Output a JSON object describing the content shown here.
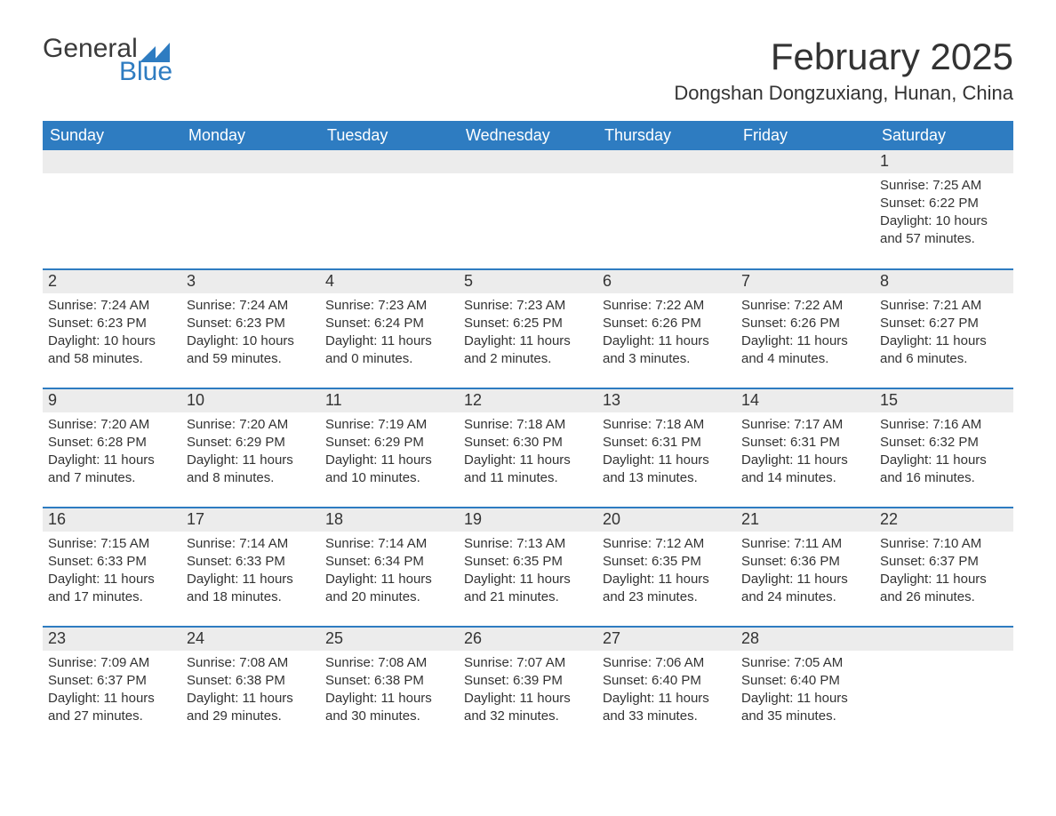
{
  "brand": {
    "word1": "General",
    "word2": "Blue"
  },
  "title": "February 2025",
  "location": "Dongshan Dongzuxiang, Hunan, China",
  "colors": {
    "accent": "#2e7cc1",
    "header_text": "#ffffff",
    "daybar_bg": "#ececec",
    "text": "#333333",
    "background": "#ffffff"
  },
  "typography": {
    "title_fontsize": 42,
    "location_fontsize": 22,
    "header_fontsize": 18,
    "daynum_fontsize": 18,
    "body_fontsize": 15
  },
  "calendar": {
    "columns": [
      "Sunday",
      "Monday",
      "Tuesday",
      "Wednesday",
      "Thursday",
      "Friday",
      "Saturday"
    ],
    "weeks": [
      [
        null,
        null,
        null,
        null,
        null,
        null,
        {
          "day": "1",
          "sunrise": "Sunrise: 7:25 AM",
          "sunset": "Sunset: 6:22 PM",
          "daylight1": "Daylight: 10 hours",
          "daylight2": "and 57 minutes."
        }
      ],
      [
        {
          "day": "2",
          "sunrise": "Sunrise: 7:24 AM",
          "sunset": "Sunset: 6:23 PM",
          "daylight1": "Daylight: 10 hours",
          "daylight2": "and 58 minutes."
        },
        {
          "day": "3",
          "sunrise": "Sunrise: 7:24 AM",
          "sunset": "Sunset: 6:23 PM",
          "daylight1": "Daylight: 10 hours",
          "daylight2": "and 59 minutes."
        },
        {
          "day": "4",
          "sunrise": "Sunrise: 7:23 AM",
          "sunset": "Sunset: 6:24 PM",
          "daylight1": "Daylight: 11 hours",
          "daylight2": "and 0 minutes."
        },
        {
          "day": "5",
          "sunrise": "Sunrise: 7:23 AM",
          "sunset": "Sunset: 6:25 PM",
          "daylight1": "Daylight: 11 hours",
          "daylight2": "and 2 minutes."
        },
        {
          "day": "6",
          "sunrise": "Sunrise: 7:22 AM",
          "sunset": "Sunset: 6:26 PM",
          "daylight1": "Daylight: 11 hours",
          "daylight2": "and 3 minutes."
        },
        {
          "day": "7",
          "sunrise": "Sunrise: 7:22 AM",
          "sunset": "Sunset: 6:26 PM",
          "daylight1": "Daylight: 11 hours",
          "daylight2": "and 4 minutes."
        },
        {
          "day": "8",
          "sunrise": "Sunrise: 7:21 AM",
          "sunset": "Sunset: 6:27 PM",
          "daylight1": "Daylight: 11 hours",
          "daylight2": "and 6 minutes."
        }
      ],
      [
        {
          "day": "9",
          "sunrise": "Sunrise: 7:20 AM",
          "sunset": "Sunset: 6:28 PM",
          "daylight1": "Daylight: 11 hours",
          "daylight2": "and 7 minutes."
        },
        {
          "day": "10",
          "sunrise": "Sunrise: 7:20 AM",
          "sunset": "Sunset: 6:29 PM",
          "daylight1": "Daylight: 11 hours",
          "daylight2": "and 8 minutes."
        },
        {
          "day": "11",
          "sunrise": "Sunrise: 7:19 AM",
          "sunset": "Sunset: 6:29 PM",
          "daylight1": "Daylight: 11 hours",
          "daylight2": "and 10 minutes."
        },
        {
          "day": "12",
          "sunrise": "Sunrise: 7:18 AM",
          "sunset": "Sunset: 6:30 PM",
          "daylight1": "Daylight: 11 hours",
          "daylight2": "and 11 minutes."
        },
        {
          "day": "13",
          "sunrise": "Sunrise: 7:18 AM",
          "sunset": "Sunset: 6:31 PM",
          "daylight1": "Daylight: 11 hours",
          "daylight2": "and 13 minutes."
        },
        {
          "day": "14",
          "sunrise": "Sunrise: 7:17 AM",
          "sunset": "Sunset: 6:31 PM",
          "daylight1": "Daylight: 11 hours",
          "daylight2": "and 14 minutes."
        },
        {
          "day": "15",
          "sunrise": "Sunrise: 7:16 AM",
          "sunset": "Sunset: 6:32 PM",
          "daylight1": "Daylight: 11 hours",
          "daylight2": "and 16 minutes."
        }
      ],
      [
        {
          "day": "16",
          "sunrise": "Sunrise: 7:15 AM",
          "sunset": "Sunset: 6:33 PM",
          "daylight1": "Daylight: 11 hours",
          "daylight2": "and 17 minutes."
        },
        {
          "day": "17",
          "sunrise": "Sunrise: 7:14 AM",
          "sunset": "Sunset: 6:33 PM",
          "daylight1": "Daylight: 11 hours",
          "daylight2": "and 18 minutes."
        },
        {
          "day": "18",
          "sunrise": "Sunrise: 7:14 AM",
          "sunset": "Sunset: 6:34 PM",
          "daylight1": "Daylight: 11 hours",
          "daylight2": "and 20 minutes."
        },
        {
          "day": "19",
          "sunrise": "Sunrise: 7:13 AM",
          "sunset": "Sunset: 6:35 PM",
          "daylight1": "Daylight: 11 hours",
          "daylight2": "and 21 minutes."
        },
        {
          "day": "20",
          "sunrise": "Sunrise: 7:12 AM",
          "sunset": "Sunset: 6:35 PM",
          "daylight1": "Daylight: 11 hours",
          "daylight2": "and 23 minutes."
        },
        {
          "day": "21",
          "sunrise": "Sunrise: 7:11 AM",
          "sunset": "Sunset: 6:36 PM",
          "daylight1": "Daylight: 11 hours",
          "daylight2": "and 24 minutes."
        },
        {
          "day": "22",
          "sunrise": "Sunrise: 7:10 AM",
          "sunset": "Sunset: 6:37 PM",
          "daylight1": "Daylight: 11 hours",
          "daylight2": "and 26 minutes."
        }
      ],
      [
        {
          "day": "23",
          "sunrise": "Sunrise: 7:09 AM",
          "sunset": "Sunset: 6:37 PM",
          "daylight1": "Daylight: 11 hours",
          "daylight2": "and 27 minutes."
        },
        {
          "day": "24",
          "sunrise": "Sunrise: 7:08 AM",
          "sunset": "Sunset: 6:38 PM",
          "daylight1": "Daylight: 11 hours",
          "daylight2": "and 29 minutes."
        },
        {
          "day": "25",
          "sunrise": "Sunrise: 7:08 AM",
          "sunset": "Sunset: 6:38 PM",
          "daylight1": "Daylight: 11 hours",
          "daylight2": "and 30 minutes."
        },
        {
          "day": "26",
          "sunrise": "Sunrise: 7:07 AM",
          "sunset": "Sunset: 6:39 PM",
          "daylight1": "Daylight: 11 hours",
          "daylight2": "and 32 minutes."
        },
        {
          "day": "27",
          "sunrise": "Sunrise: 7:06 AM",
          "sunset": "Sunset: 6:40 PM",
          "daylight1": "Daylight: 11 hours",
          "daylight2": "and 33 minutes."
        },
        {
          "day": "28",
          "sunrise": "Sunrise: 7:05 AM",
          "sunset": "Sunset: 6:40 PM",
          "daylight1": "Daylight: 11 hours",
          "daylight2": "and 35 minutes."
        },
        null
      ]
    ]
  }
}
